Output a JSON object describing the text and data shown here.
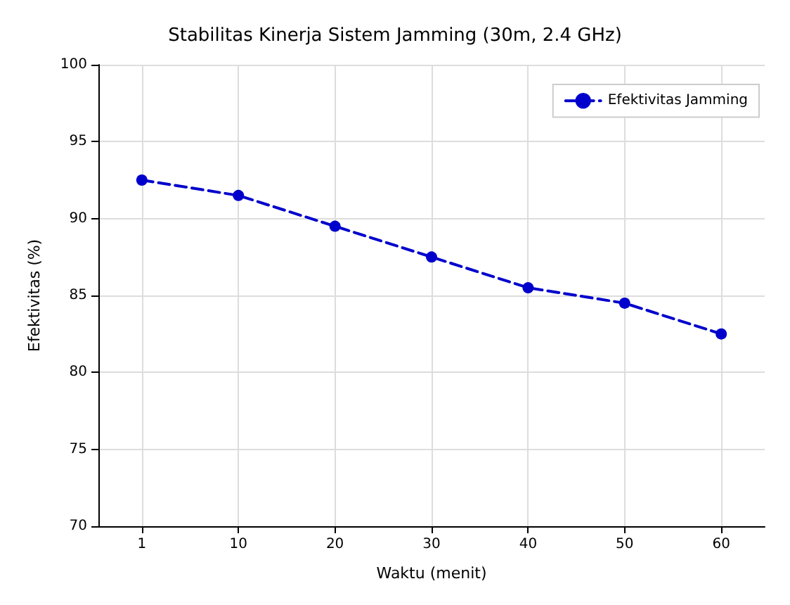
{
  "chart_data": {
    "type": "line",
    "title": "Stabilitas Kinerja Sistem Jamming (30m, 2.4 GHz)",
    "xlabel": "Waktu (menit)",
    "ylabel": "Efektivitas (%)",
    "categories": [
      "1",
      "10",
      "20",
      "30",
      "40",
      "50",
      "60"
    ],
    "series": [
      {
        "name": "Efektivitas Jamming",
        "color": "#0000cc",
        "values": [
          92.5,
          91.5,
          89.5,
          87.5,
          85.5,
          84.5,
          82.5
        ]
      }
    ],
    "ylim": [
      70,
      100
    ],
    "yticks": [
      70,
      75,
      80,
      85,
      90,
      95,
      100
    ],
    "grid": true,
    "legend": "top right",
    "marker": "circle",
    "line_style": "dashed"
  }
}
